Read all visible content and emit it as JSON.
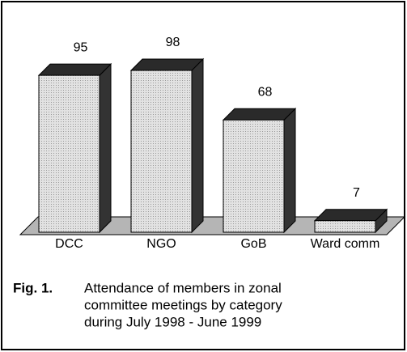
{
  "chart_data": {
    "type": "bar3d",
    "categories": [
      "DCC",
      "NGO",
      "GoB",
      "Ward comm"
    ],
    "values": [
      95,
      98,
      68,
      7
    ],
    "color": "#d6d6d6",
    "caption_label": "Fig. 1.",
    "caption_lines": [
      "Attendance of members in zonal",
      "committee meetings by category",
      "during July 1998 - June 1999"
    ]
  }
}
